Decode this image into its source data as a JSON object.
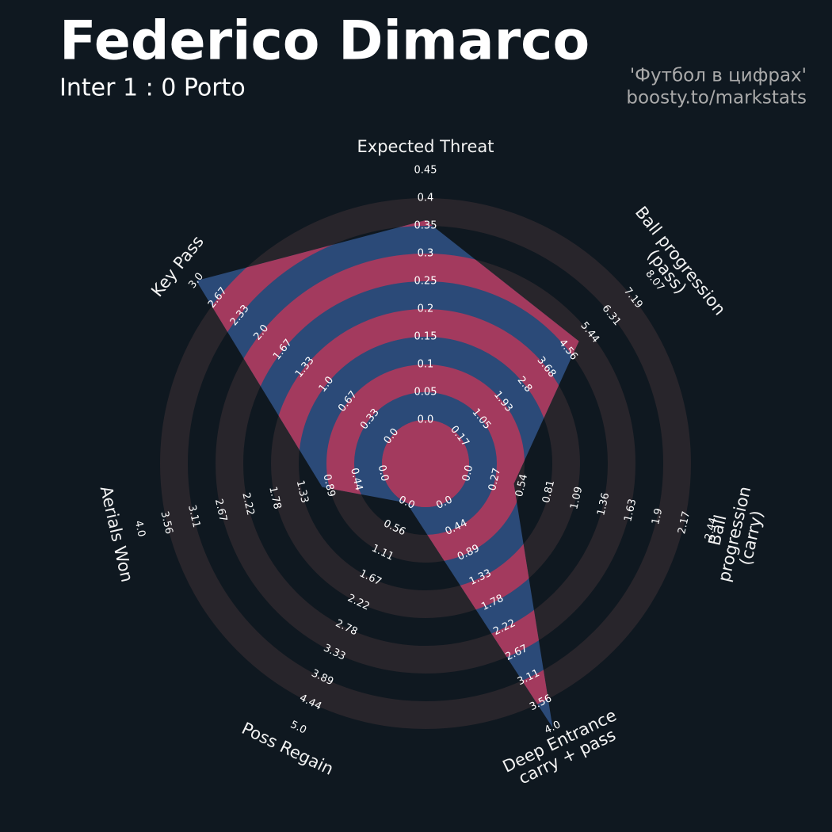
{
  "chart_data": {
    "type": "radar",
    "title": "Federico Dimarco",
    "subtitle": "Inter 1 : 0 Porto",
    "credits": [
      "'Футбол в цифрах'",
      "boosty.to/markstats"
    ],
    "params": [
      "Expected Threat",
      "Ball progression (pass)",
      "Ball progression (carry)",
      "Deep Entrance\ncarry + pass",
      "Poss Regain",
      "Aerials Won",
      "Key Pass"
    ],
    "values": [
      0.36,
      5.0,
      0.46,
      4.0,
      0,
      1,
      3.0
    ],
    "ranges": [
      [
        0,
        0.45
      ],
      [
        0.17,
        8.07
      ],
      [
        0,
        2.44
      ],
      [
        0,
        4
      ],
      [
        0,
        5
      ],
      [
        0,
        4
      ],
      [
        0,
        3
      ]
    ],
    "ticks": [
      [
        {
          "value": 0,
          "label": "0.0"
        },
        0.05,
        0.1,
        0.15,
        0.2,
        0.25,
        0.3,
        0.35,
        0.4,
        0.45
      ],
      [
        0.17,
        1.05,
        1.93,
        2.8,
        3.68,
        4.56,
        5.44,
        6.31,
        7.19,
        8.07
      ],
      [
        {
          "value": 0,
          "label": "0.0"
        },
        0.27,
        0.54,
        0.81,
        1.09,
        1.36,
        1.63,
        1.9,
        2.17,
        2.44
      ],
      [
        {
          "value": 0,
          "label": "0.0"
        },
        0.44,
        0.89,
        1.33,
        1.78,
        2.22,
        2.67,
        3.11,
        3.56,
        {
          "value": 4,
          "label": "4.0"
        }
      ],
      [
        {
          "value": 0,
          "label": "0.0"
        },
        0.56,
        1.11,
        1.67,
        2.22,
        2.78,
        3.33,
        3.89,
        4.44,
        {
          "value": 5,
          "label": "5.0"
        }
      ],
      [
        {
          "value": 0,
          "label": "0.0"
        },
        0.44,
        0.89,
        1.33,
        1.78,
        2.22,
        2.67,
        3.11,
        3.56,
        {
          "value": 4,
          "label": "4.0"
        }
      ],
      [
        {
          "value": 0,
          "label": "0.0"
        },
        0.33,
        0.67,
        {
          "value": 1,
          "label": "1.0"
        },
        1.33,
        1.67,
        {
          "value": 2,
          "label": "2.0"
        },
        2.33,
        2.67,
        {
          "value": 3,
          "label": "3.0"
        }
      ]
    ],
    "background": "#0f1820",
    "ring_color": "#28252b",
    "color": "#2b4a78",
    "alt_color": "#a33a5e"
  }
}
